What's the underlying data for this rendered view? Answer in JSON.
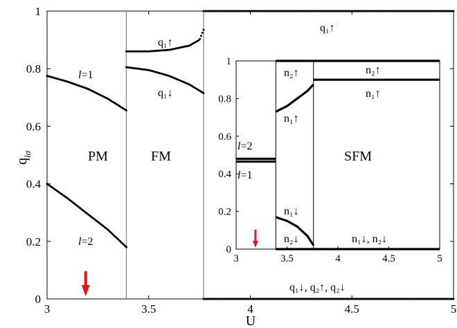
{
  "chart_data": [
    {
      "type": "scatter",
      "xlabel": "U",
      "ylabel": "q",
      "ylabel_sub": "lσ",
      "xlim": [
        3,
        5
      ],
      "ylim": [
        0,
        1
      ],
      "xticks": [
        "3",
        "3.5",
        "4",
        "4.5",
        "5"
      ],
      "yticks": [
        "0",
        "0.2",
        "0.4",
        "0.6",
        "0.8",
        "1"
      ],
      "phase_boundaries": [
        3.39,
        3.77
      ],
      "regions": [
        "PM",
        "FM"
      ],
      "annotations": {
        "l1": "l=1",
        "l2": "l=2",
        "q1up_fm": "q₁↑",
        "q1dn_fm": "q₁↓",
        "q1up_top": "q₁↑",
        "bottom": "q₁↓, q₂↑, q₂↓"
      },
      "arrow_x": 3.19,
      "arrow_color": "#ee1111",
      "series": [
        {
          "x": [
            3.0,
            3.1,
            3.2,
            3.3,
            3.39
          ],
          "values": [
            0.775,
            0.755,
            0.73,
            0.695,
            0.655
          ]
        },
        {
          "x": [
            3.0,
            3.1,
            3.2,
            3.3,
            3.39
          ],
          "values": [
            0.4,
            0.35,
            0.295,
            0.24,
            0.18
          ]
        },
        {
          "x": [
            3.39,
            3.5,
            3.6,
            3.7,
            3.75,
            3.77
          ],
          "values": [
            0.86,
            0.86,
            0.865,
            0.88,
            0.9,
            0.935
          ]
        },
        {
          "x": [
            3.39,
            3.5,
            3.6,
            3.7,
            3.77
          ],
          "values": [
            0.805,
            0.795,
            0.775,
            0.745,
            0.715
          ]
        },
        {
          "x": [
            3.77,
            5.0
          ],
          "values": [
            1.0,
            1.0
          ]
        },
        {
          "x": [
            3.77,
            5.0
          ],
          "values": [
            0.0,
            0.0
          ]
        }
      ]
    },
    {
      "type": "line",
      "inset": true,
      "xlim": [
        3,
        5
      ],
      "ylim": [
        0,
        1
      ],
      "xticks": [
        "3",
        "3.5",
        "4",
        "4.5",
        "5"
      ],
      "yticks": [
        "0",
        "0.2",
        "0.4",
        "0.6",
        "0.8",
        "1"
      ],
      "phase_boundaries": [
        3.39,
        3.76
      ],
      "regions": [
        "SFM"
      ],
      "annotations": {
        "l2": "l=2",
        "l1": "l=1",
        "n2up_left": "n₂↑",
        "n1up_left": "n₁↑",
        "n2up_right": "n₂↑",
        "n1up_right": "n₁↑",
        "n1dn_left": "n₁↓",
        "n2dn_left": "n₂↓",
        "bottom_right": "n₁↓, n₂↓"
      },
      "arrow_x": 3.19,
      "arrow_color": "#ee1111",
      "series": [
        {
          "x": [
            3.0,
            3.39
          ],
          "values": [
            0.48,
            0.48
          ]
        },
        {
          "x": [
            3.0,
            3.39
          ],
          "values": [
            0.465,
            0.465
          ]
        },
        {
          "x": [
            3.39,
            5.0
          ],
          "values": [
            1.0,
            1.0
          ]
        },
        {
          "x": [
            3.39,
            3.5,
            3.6,
            3.7,
            3.76
          ],
          "values": [
            0.73,
            0.76,
            0.8,
            0.84,
            0.875
          ]
        },
        {
          "x": [
            3.76,
            5.0
          ],
          "values": [
            0.9,
            0.9
          ]
        },
        {
          "x": [
            3.39,
            3.5,
            3.6,
            3.7,
            3.76
          ],
          "values": [
            0.17,
            0.15,
            0.12,
            0.07,
            0.02
          ]
        },
        {
          "x": [
            3.39,
            5.0
          ],
          "values": [
            0.0,
            0.0
          ]
        }
      ]
    }
  ]
}
